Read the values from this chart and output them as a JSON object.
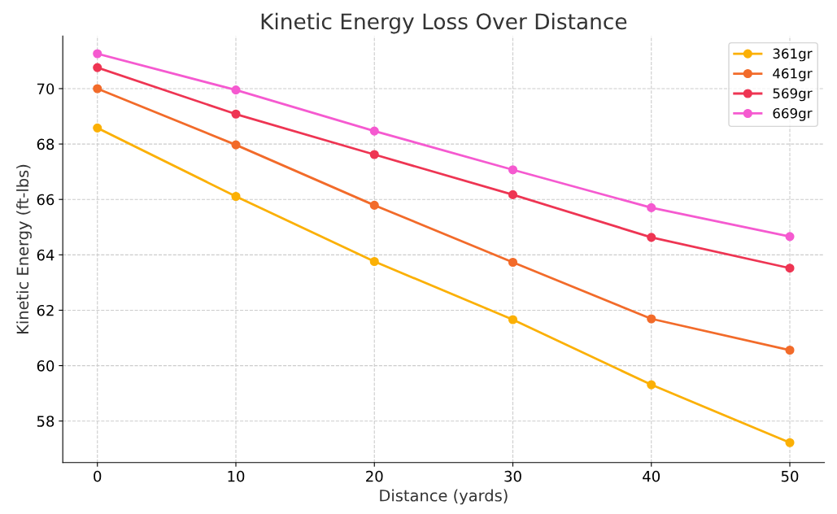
{
  "chart_data": {
    "type": "line",
    "title": "Kinetic Energy Loss Over Distance",
    "xlabel": "Distance (yards)",
    "ylabel": "Kinetic Energy (ft-lbs)",
    "x": [
      0,
      10,
      20,
      30,
      40,
      50
    ],
    "series": [
      {
        "name": "361gr",
        "color": "#fbb005",
        "values": [
          68.58,
          66.11,
          63.76,
          61.66,
          59.31,
          57.22
        ]
      },
      {
        "name": "461gr",
        "color": "#f26b2a",
        "values": [
          70.0,
          67.97,
          65.79,
          63.73,
          61.69,
          60.56
        ]
      },
      {
        "name": "569gr",
        "color": "#ee3553",
        "values": [
          70.76,
          69.08,
          67.62,
          66.17,
          64.63,
          63.52
        ]
      },
      {
        "name": "669gr",
        "color": "#f55ad0",
        "values": [
          71.26,
          69.95,
          68.47,
          67.07,
          65.7,
          64.66
        ]
      }
    ],
    "xlim": [
      -2.5,
      52.5
    ],
    "xticks": [
      0,
      10,
      20,
      30,
      40,
      50
    ],
    "ylim": [
      56.5,
      71.9
    ],
    "yticks": [
      58,
      60,
      62,
      64,
      66,
      68,
      70
    ],
    "grid": true,
    "legend": "top right",
    "marker": "circle",
    "line_style": "solid"
  }
}
